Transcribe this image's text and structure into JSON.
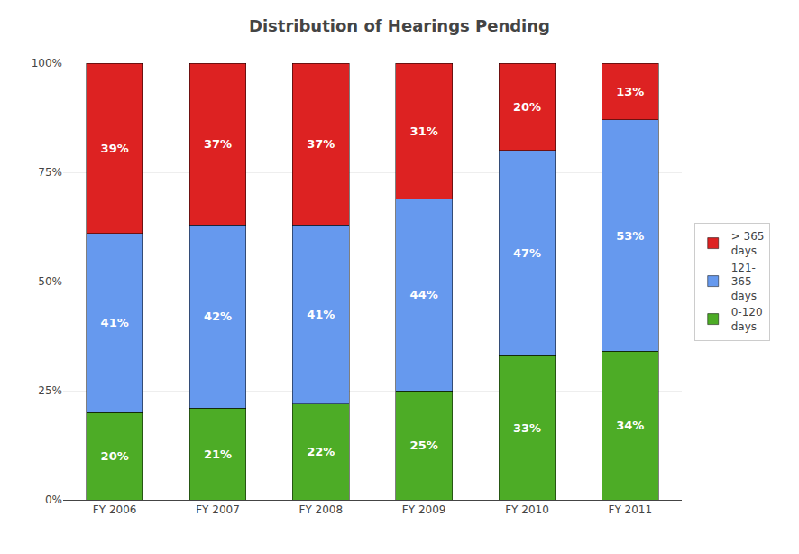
{
  "chart_data": {
    "type": "bar",
    "stacked": true,
    "title": "Distribution of Hearings Pending",
    "categories": [
      "FY 2006",
      "FY 2007",
      "FY 2008",
      "FY 2009",
      "FY 2010",
      "FY 2011"
    ],
    "series": [
      {
        "name": "0-120\ndays",
        "color": "#4dac26",
        "values": [
          20,
          21,
          22,
          25,
          33,
          34
        ],
        "value_labels": [
          "20%",
          "21%",
          "22%",
          "25%",
          "33%",
          "34%"
        ]
      },
      {
        "name": "121-\n365\ndays",
        "color": "#6699ee",
        "values": [
          41,
          42,
          41,
          44,
          47,
          53
        ],
        "value_labels": [
          "41%",
          "42%",
          "41%",
          "44%",
          "47%",
          "53%"
        ]
      },
      {
        "name": "> 365\ndays",
        "color": "#dd2222",
        "values": [
          39,
          37,
          37,
          31,
          20,
          13
        ],
        "value_labels": [
          "39%",
          "37%",
          "37%",
          "31%",
          "20%",
          "13%"
        ]
      }
    ],
    "ylim": [
      0,
      100
    ],
    "yticks": [
      {
        "value": 0,
        "label": "0%"
      },
      {
        "value": 25,
        "label": "25%"
      },
      {
        "value": 50,
        "label": "50%"
      },
      {
        "value": 75,
        "label": "75%"
      },
      {
        "value": 100,
        "label": "100%"
      }
    ],
    "grid": true,
    "data_labels": true,
    "legend": "right"
  }
}
